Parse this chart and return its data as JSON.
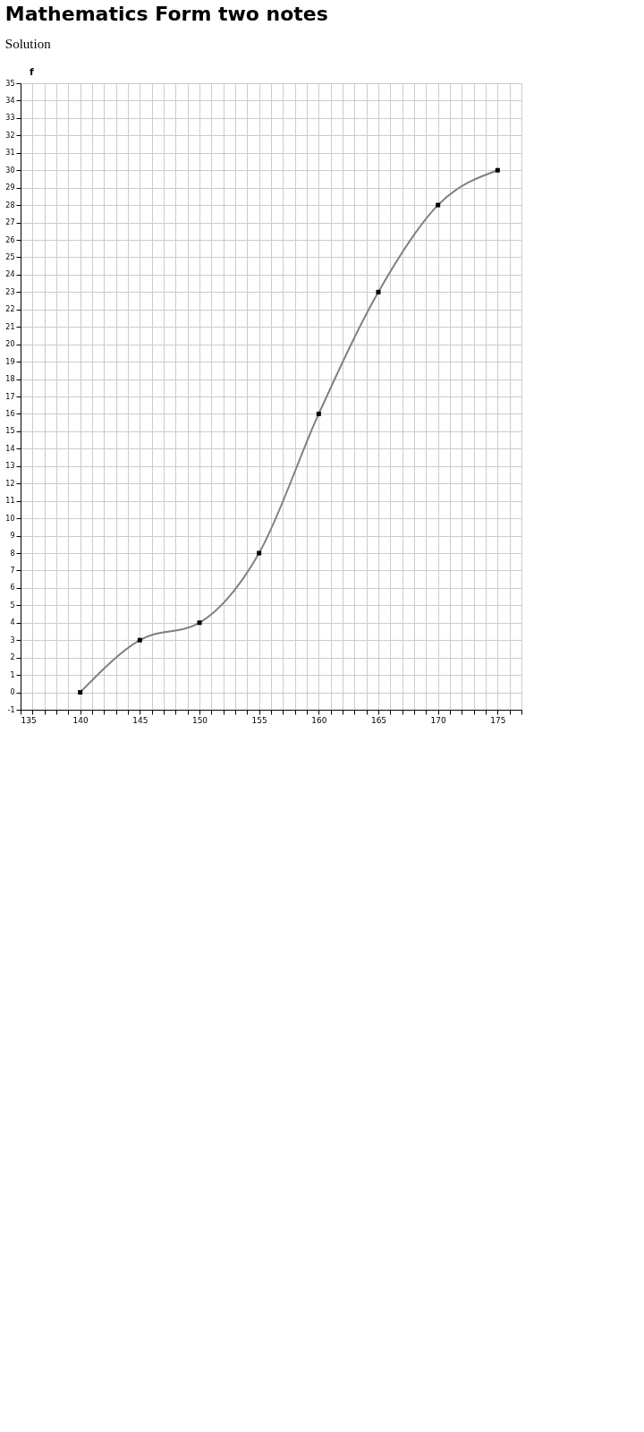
{
  "chart_data": {
    "type": "line",
    "title": "Mathematics Form two notes",
    "subtitle": "Solution",
    "ylabel": "f",
    "x": [
      140,
      145,
      150,
      155,
      160,
      165,
      170,
      175
    ],
    "series": [
      {
        "color": "#808080",
        "values": [
          0,
          3,
          4,
          8,
          16,
          23,
          28,
          30
        ]
      }
    ],
    "xlim": [
      135,
      177
    ],
    "xticks": [
      135,
      {
        "value": 136,
        "label": null
      },
      {
        "value": 137,
        "label": null
      },
      {
        "value": 138,
        "label": null
      },
      {
        "value": 139,
        "label": null
      },
      140,
      {
        "value": 141,
        "label": null
      },
      {
        "value": 142,
        "label": null
      },
      {
        "value": 143,
        "label": null
      },
      {
        "value": 144,
        "label": null
      },
      145,
      {
        "value": 146,
        "label": null
      },
      {
        "value": 147,
        "label": null
      },
      {
        "value": 148,
        "label": null
      },
      {
        "value": 149,
        "label": null
      },
      150,
      {
        "value": 151,
        "label": null
      },
      {
        "value": 152,
        "label": null
      },
      {
        "value": 153,
        "label": null
      },
      {
        "value": 154,
        "label": null
      },
      155,
      {
        "value": 156,
        "label": null
      },
      {
        "value": 157,
        "label": null
      },
      {
        "value": 158,
        "label": null
      },
      {
        "value": 159,
        "label": null
      },
      160,
      {
        "value": 161,
        "label": null
      },
      {
        "value": 162,
        "label": null
      },
      {
        "value": 163,
        "label": null
      },
      {
        "value": 164,
        "label": null
      },
      165,
      {
        "value": 166,
        "label": null
      },
      {
        "value": 167,
        "label": null
      },
      {
        "value": 168,
        "label": null
      },
      {
        "value": 169,
        "label": null
      },
      170,
      {
        "value": 171,
        "label": null
      },
      {
        "value": 172,
        "label": null
      },
      {
        "value": 173,
        "label": null
      },
      {
        "value": 174,
        "label": null
      },
      175,
      {
        "value": 176,
        "label": null
      },
      {
        "value": 177,
        "label": null
      }
    ],
    "ylim": [
      -1,
      35
    ],
    "yticks": [
      -1,
      0,
      1,
      2,
      3,
      4,
      5,
      6,
      7,
      8,
      9,
      10,
      11,
      12,
      13,
      14,
      15,
      16,
      17,
      18,
      19,
      20,
      21,
      22,
      23,
      24,
      25,
      26,
      27,
      28,
      29,
      30,
      31,
      32,
      33,
      34,
      35
    ],
    "grid": true,
    "marker": "square",
    "line_style": "solid"
  }
}
